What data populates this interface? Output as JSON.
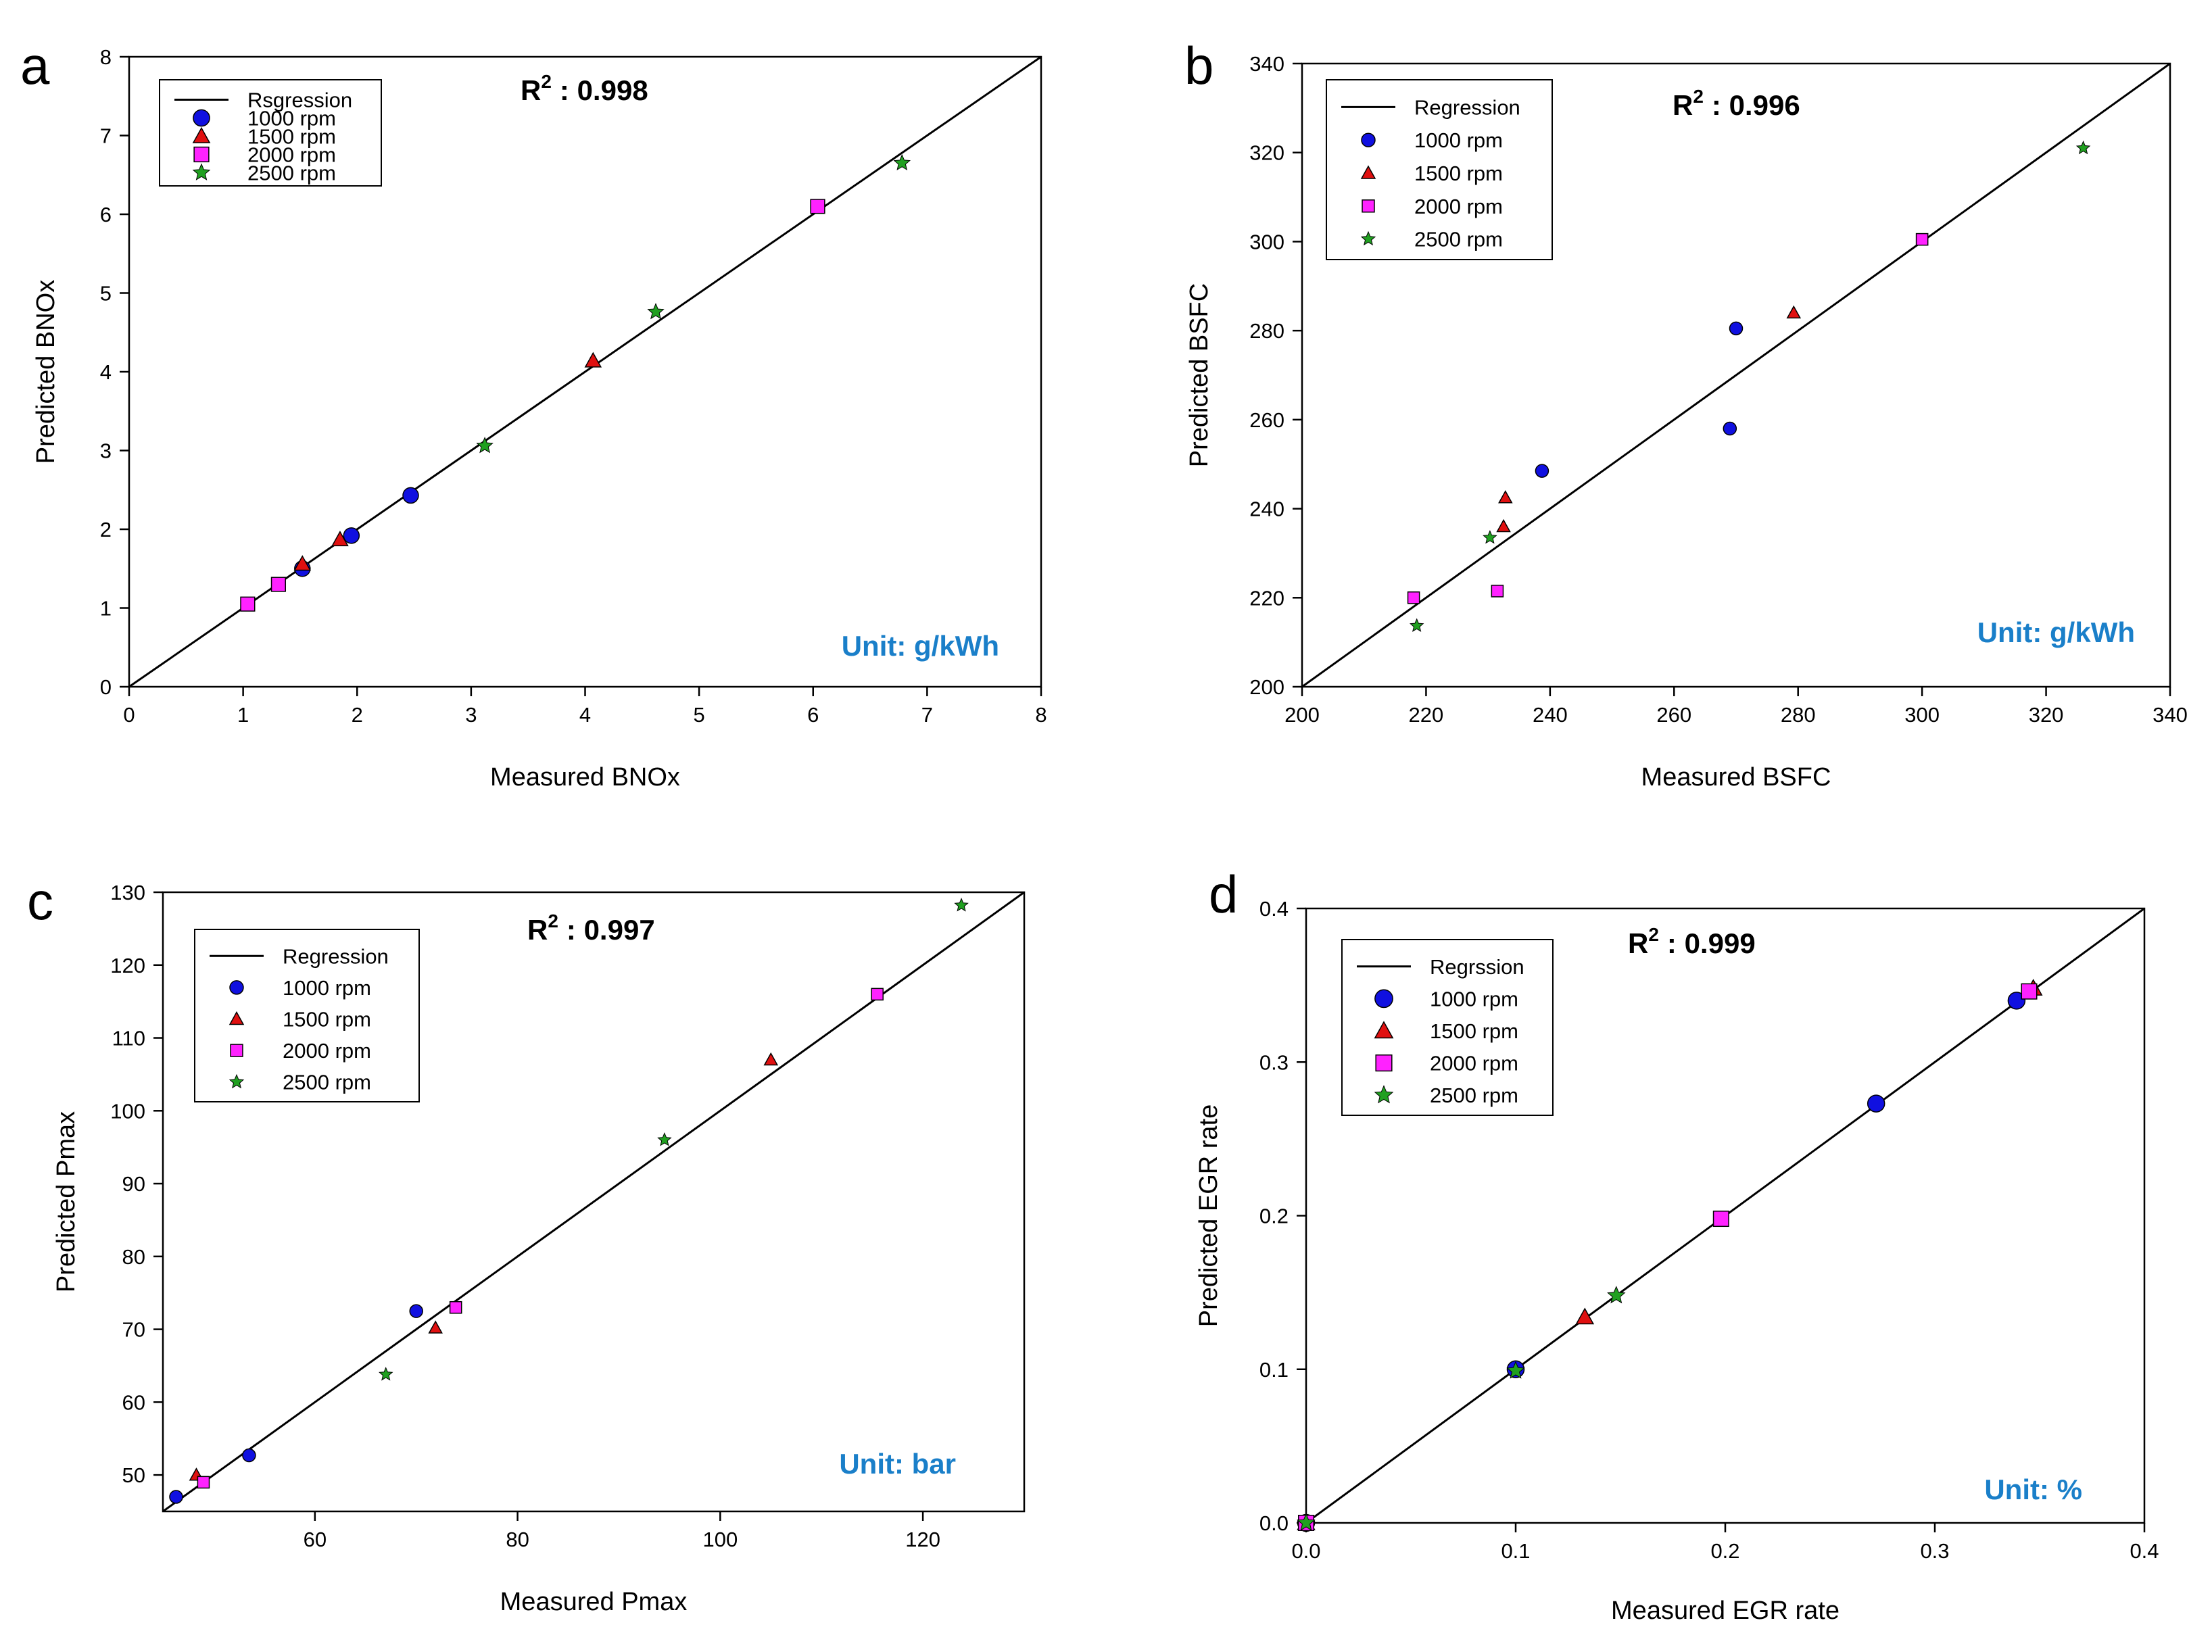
{
  "figure": {
    "series_styles": [
      {
        "name": "1000 rpm",
        "marker": "circle",
        "color": "#1010e0"
      },
      {
        "name": "1500 rpm",
        "marker": "triangle",
        "color": "#e01010"
      },
      {
        "name": "2000 rpm",
        "marker": "square",
        "color": "#ff22ff"
      },
      {
        "name": "2500 rpm",
        "marker": "star",
        "color": "#20a020"
      }
    ],
    "unit_color": "#1a7fc9"
  },
  "chart_data": [
    {
      "type": "scatter",
      "panel": "a",
      "title": "",
      "xlabel": "Measured BNOx",
      "ylabel": "Predicted BNOx",
      "xlim": [
        0,
        8
      ],
      "ylim": [
        0,
        8
      ],
      "xticks": [
        0,
        1,
        2,
        3,
        4,
        5,
        6,
        7,
        8
      ],
      "yticks": [
        0,
        1,
        2,
        3,
        4,
        5,
        6,
        7,
        8
      ],
      "tick_decimals": 0,
      "r2_label": "R",
      "r2_sup": "2",
      "r2_value": ": 0.998",
      "unit": "Unit: g/kWh",
      "legend": {
        "line_label": "Rsgression",
        "position": "top-left"
      },
      "regression": [
        [
          0,
          0
        ],
        [
          8,
          8
        ]
      ],
      "series": [
        {
          "name": "1000 rpm",
          "points": [
            [
              1.52,
              1.5
            ],
            [
              1.95,
              1.92
            ],
            [
              2.47,
              2.43
            ]
          ]
        },
        {
          "name": "1500 rpm",
          "points": [
            [
              1.52,
              1.56
            ],
            [
              1.85,
              1.87
            ],
            [
              4.07,
              4.14
            ]
          ]
        },
        {
          "name": "2000 rpm",
          "points": [
            [
              1.04,
              1.05
            ],
            [
              1.31,
              1.3
            ],
            [
              6.04,
              6.1
            ]
          ]
        },
        {
          "name": "2500 rpm",
          "points": [
            [
              3.12,
              3.06
            ],
            [
              4.62,
              4.76
            ],
            [
              6.78,
              6.65
            ]
          ]
        }
      ]
    },
    {
      "type": "scatter",
      "panel": "b",
      "title": "",
      "xlabel": "Measured BSFC",
      "ylabel": "Predicted BSFC",
      "xlim": [
        200,
        340
      ],
      "ylim": [
        200,
        340
      ],
      "xticks": [
        200,
        220,
        240,
        260,
        280,
        300,
        320,
        340
      ],
      "yticks": [
        200,
        220,
        240,
        260,
        280,
        300,
        320,
        340
      ],
      "tick_decimals": 0,
      "r2_label": "R",
      "r2_sup": "2",
      "r2_value": ": 0.996",
      "unit": "Unit: g/kWh",
      "legend": {
        "line_label": "Regression",
        "position": "top-left"
      },
      "regression": [
        [
          200,
          200
        ],
        [
          340,
          340
        ]
      ],
      "series": [
        {
          "name": "1000 rpm",
          "points": [
            [
              238.7,
              248.5
            ],
            [
              269.0,
              258.0
            ],
            [
              270.0,
              280.5
            ]
          ]
        },
        {
          "name": "1500 rpm",
          "points": [
            [
              232.5,
              236.0
            ],
            [
              232.8,
              242.5
            ],
            [
              279.3,
              284.0
            ]
          ]
        },
        {
          "name": "2000 rpm",
          "points": [
            [
              218.0,
              220.0
            ],
            [
              231.5,
              221.5
            ],
            [
              300.0,
              300.5
            ]
          ]
        },
        {
          "name": "2500 rpm",
          "points": [
            [
              218.5,
              213.7
            ],
            [
              230.3,
              233.5
            ],
            [
              326.0,
              321.0
            ]
          ]
        }
      ]
    },
    {
      "type": "scatter",
      "panel": "c",
      "title": "",
      "xlabel": "Measured Pmax",
      "ylabel": "Predicted Pmax",
      "xlim": [
        45,
        130
      ],
      "ylim": [
        45,
        130
      ],
      "xticks": [
        60,
        80,
        100,
        120
      ],
      "yticks": [
        50,
        60,
        70,
        80,
        90,
        100,
        110,
        120,
        130
      ],
      "tick_decimals": 0,
      "r2_label": "R",
      "r2_sup": "2",
      "r2_value": ": 0.997",
      "unit": "Unit: bar",
      "legend": {
        "line_label": "Regression",
        "position": "top-left"
      },
      "regression": [
        [
          45,
          45
        ],
        [
          130,
          130
        ]
      ],
      "series": [
        {
          "name": "1000 rpm",
          "points": [
            [
              46.3,
              47.0
            ],
            [
              53.5,
              52.7
            ],
            [
              70.0,
              72.5
            ]
          ]
        },
        {
          "name": "1500 rpm",
          "points": [
            [
              48.3,
              50.0
            ],
            [
              71.9,
              70.2
            ],
            [
              105.0,
              107.0
            ]
          ]
        },
        {
          "name": "2000 rpm",
          "points": [
            [
              49.0,
              49.0
            ],
            [
              73.9,
              73.0
            ],
            [
              115.5,
              116.0
            ]
          ]
        },
        {
          "name": "2500 rpm",
          "points": [
            [
              67.0,
              63.8
            ],
            [
              94.5,
              96.0
            ],
            [
              123.8,
              128.2
            ]
          ]
        }
      ]
    },
    {
      "type": "scatter",
      "panel": "d",
      "title": "",
      "xlabel": "Measured EGR rate",
      "ylabel": "Predicted EGR rate",
      "xlim": [
        0,
        0.4
      ],
      "ylim": [
        0,
        0.4
      ],
      "xticks": [
        0.0,
        0.1,
        0.2,
        0.3,
        0.4
      ],
      "yticks": [
        0.0,
        0.1,
        0.2,
        0.3,
        0.4
      ],
      "tick_decimals": 1,
      "r2_label": "R",
      "r2_sup": "2",
      "r2_value": ": 0.999",
      "unit": "Unit: %",
      "legend": {
        "line_label": "Regrssion",
        "position": "top-left"
      },
      "regression": [
        [
          0,
          0
        ],
        [
          0.4,
          0.4
        ]
      ],
      "series": [
        {
          "name": "1000 rpm",
          "points": [
            [
              0.0,
              0.0
            ],
            [
              0.1,
              0.1
            ],
            [
              0.272,
              0.273
            ],
            [
              0.339,
              0.34
            ]
          ]
        },
        {
          "name": "1500 rpm",
          "points": [
            [
              0.0,
              0.0
            ],
            [
              0.133,
              0.134
            ],
            [
              0.347,
              0.348
            ]
          ]
        },
        {
          "name": "2000 rpm",
          "points": [
            [
              0.0,
              0.0
            ],
            [
              0.198,
              0.198
            ],
            [
              0.345,
              0.346
            ]
          ]
        },
        {
          "name": "2500 rpm",
          "points": [
            [
              0.0,
              0.0
            ],
            [
              0.1,
              0.099
            ],
            [
              0.148,
              0.148
            ]
          ]
        }
      ]
    }
  ]
}
